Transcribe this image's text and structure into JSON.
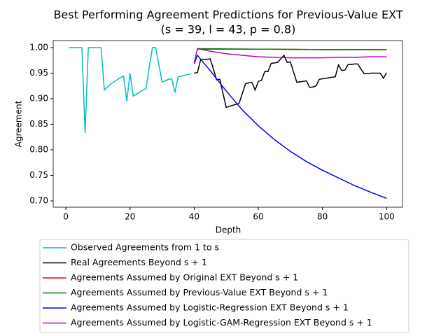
{
  "chart_data": {
    "type": "line",
    "title": "Best Performing Agreement Predictions for Previous-Value EXT",
    "subtitle": "(s = 39, l = 43, p = 0.8)",
    "x_label": "Depth",
    "y_label": "Agreement",
    "xlim": [
      -3.95,
      104.95
    ],
    "ylim": [
      0.6877,
      1.0137
    ],
    "xticks": [
      0,
      20,
      40,
      60,
      80,
      100
    ],
    "yticks": [
      {
        "value": 0.7,
        "label": "0.70"
      },
      {
        "value": 0.75,
        "label": "0.75"
      },
      {
        "value": 0.8,
        "label": "0.80"
      },
      {
        "value": 0.85,
        "label": "0.85"
      },
      {
        "value": 0.9,
        "label": "0.90"
      },
      {
        "value": 0.95,
        "label": "0.95"
      },
      {
        "value": 1.0,
        "label": "1.00"
      }
    ],
    "legend": "below",
    "series": [
      {
        "name": "Observed Agreements from 1 to s",
        "color": "#00bfbf",
        "x": [
          1,
          2,
          3,
          4,
          5,
          6,
          7,
          8,
          9,
          10,
          11,
          12,
          13,
          14,
          15,
          16,
          17,
          18,
          19,
          20,
          21,
          22,
          23,
          24,
          25,
          26,
          27,
          28,
          29,
          30,
          31,
          32,
          33,
          34,
          35,
          36,
          37,
          38,
          39
        ],
        "values": [
          1.0,
          1.0,
          1.0,
          1.0,
          1.0,
          0.833,
          1.0,
          1.0,
          1.0,
          1.0,
          1.0,
          0.917,
          0.923,
          0.929,
          0.933,
          0.937,
          0.941,
          0.944,
          0.895,
          0.95,
          0.905,
          0.909,
          0.913,
          0.917,
          0.92,
          0.962,
          1.0,
          1.0,
          0.966,
          0.933,
          0.935,
          0.938,
          0.939,
          0.912,
          0.943,
          0.944,
          0.946,
          0.947,
          0.949
        ]
      },
      {
        "name": "Real Agreements Beyond s + 1",
        "color": "#000000",
        "x": [
          40,
          41,
          42,
          43,
          44,
          45,
          46,
          47,
          48,
          49,
          50,
          51,
          52,
          53,
          54,
          55,
          56,
          57,
          58,
          59,
          60,
          61,
          62,
          63,
          64,
          65,
          66,
          67,
          68,
          69,
          70,
          71,
          72,
          73,
          74,
          75,
          76,
          77,
          78,
          79,
          80,
          81,
          82,
          83,
          84,
          85,
          86,
          87,
          88,
          89,
          90,
          91,
          92,
          93,
          94,
          95,
          96,
          97,
          98,
          99,
          100
        ],
        "values": [
          0.95,
          0.951,
          0.976,
          0.977,
          0.977,
          0.978,
          0.958,
          0.937,
          0.938,
          0.91,
          0.883,
          0.885,
          0.887,
          0.889,
          0.891,
          0.91,
          0.929,
          0.931,
          0.932,
          0.917,
          0.934,
          0.936,
          0.953,
          0.953,
          0.969,
          0.97,
          0.971,
          0.978,
          0.985,
          0.971,
          0.972,
          0.952,
          0.932,
          0.933,
          0.934,
          0.935,
          0.922,
          0.923,
          0.925,
          0.938,
          0.939,
          0.94,
          0.941,
          0.942,
          0.943,
          0.966,
          0.955,
          0.956,
          0.967,
          0.967,
          0.968,
          0.968,
          0.958,
          0.949,
          0.949,
          0.95,
          0.95,
          0.95,
          0.95,
          0.94,
          0.951
        ]
      },
      {
        "name": "Agreements Assumed by Original EXT Beyond s + 1",
        "color": "#ff0000",
        "x": [
          41,
          60,
          80,
          100
        ],
        "values": [
          0.997,
          0.997,
          0.996,
          0.996
        ]
      },
      {
        "name": "Agreements Assumed by Previous-Value EXT Beyond s + 1",
        "color": "#008000",
        "x": [
          41,
          60,
          80,
          100
        ],
        "values": [
          0.998,
          0.997,
          0.996,
          0.996
        ]
      },
      {
        "name": "Agreements Assumed by Logistic-Regression EXT Beyond s + 1",
        "color": "#0000ff",
        "x": [
          40,
          41,
          45,
          50,
          55,
          60,
          65,
          70,
          75,
          80,
          85,
          90,
          95,
          100
        ],
        "values": [
          0.968,
          0.985,
          0.955,
          0.915,
          0.878,
          0.847,
          0.82,
          0.797,
          0.777,
          0.76,
          0.745,
          0.73,
          0.717,
          0.705
        ]
      },
      {
        "name": "Agreements Assumed by Logistic-GAM-Regression EXT Beyond s + 1",
        "color": "#bf00bf",
        "x": [
          40,
          41,
          45,
          50,
          55,
          60,
          65,
          70,
          75,
          80,
          85,
          90,
          95,
          100
        ],
        "values": [
          0.97,
          0.998,
          0.993,
          0.988,
          0.985,
          0.982,
          0.981,
          0.98,
          0.98,
          0.98,
          0.981,
          0.981,
          0.982,
          0.982
        ]
      }
    ]
  }
}
